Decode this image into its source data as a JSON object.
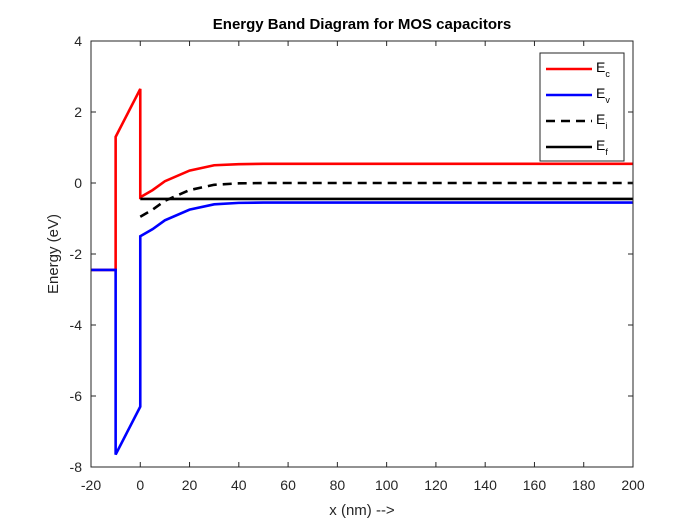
{
  "chart_data": {
    "type": "line",
    "title": "Energy Band Diagram for MOS capacitors",
    "xlabel": "x (nm) -->",
    "ylabel": "Energy (eV)",
    "xlim": [
      -20,
      200
    ],
    "ylim": [
      -8,
      4
    ],
    "xticks": [
      -20,
      0,
      20,
      40,
      60,
      80,
      100,
      120,
      140,
      160,
      180,
      200
    ],
    "yticks": [
      -8,
      -6,
      -4,
      -2,
      0,
      2,
      4
    ],
    "grid": false,
    "legend_position": "top-right",
    "series": [
      {
        "name": "Ec",
        "label_main": "E",
        "label_sub": "c",
        "color": "#ff0000",
        "dash": "solid",
        "x": [
          -20,
          -10,
          -10,
          0,
          0,
          5,
          10,
          20,
          30,
          40,
          50,
          100,
          200
        ],
        "y": [
          -2.45,
          -2.45,
          1.3,
          2.65,
          -0.4,
          -0.2,
          0.05,
          0.35,
          0.5,
          0.53,
          0.54,
          0.54,
          0.54
        ]
      },
      {
        "name": "Ev",
        "label_main": "E",
        "label_sub": "v",
        "color": "#0000ff",
        "dash": "solid",
        "x": [
          -20,
          -10,
          -10,
          0,
          0,
          5,
          10,
          20,
          30,
          40,
          50,
          100,
          200
        ],
        "y": [
          -2.45,
          -2.45,
          -7.65,
          -6.3,
          -1.5,
          -1.3,
          -1.05,
          -0.75,
          -0.6,
          -0.56,
          -0.55,
          -0.55,
          -0.55
        ]
      },
      {
        "name": "Ei",
        "label_main": "E",
        "label_sub": "i",
        "color": "#000000",
        "dash": "dashed",
        "x": [
          0,
          5,
          10,
          20,
          30,
          40,
          50,
          100,
          200
        ],
        "y": [
          -0.95,
          -0.75,
          -0.5,
          -0.2,
          -0.05,
          -0.01,
          0,
          0,
          0
        ]
      },
      {
        "name": "Ef",
        "label_main": "E",
        "label_sub": "f",
        "color": "#000000",
        "dash": "solid",
        "x": [
          0,
          200
        ],
        "y": [
          -0.45,
          -0.45
        ]
      }
    ]
  }
}
